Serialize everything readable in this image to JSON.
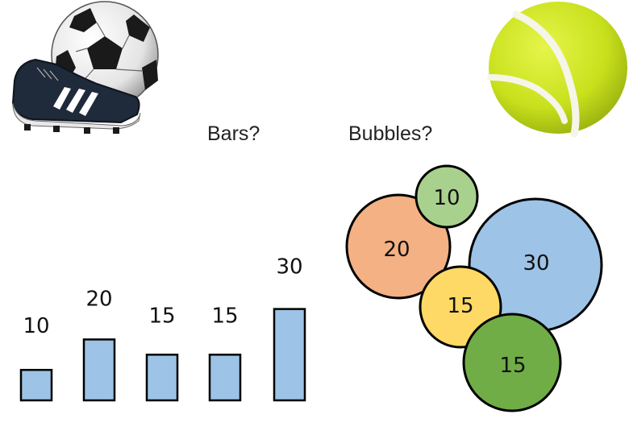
{
  "slide": {
    "question_bars": "Bars?",
    "question_bubbles": "Bubbles?"
  },
  "images": {
    "left": "soccer-ball-and-cleat",
    "right": "tennis-ball"
  },
  "colors": {
    "bar_fill": "#9dc3e6",
    "stroke": "#000000",
    "bubble_orange": "#f4b183",
    "bubble_green_light": "#a9d18e",
    "bubble_blue": "#9dc3e6",
    "bubble_yellow": "#ffd966",
    "bubble_green": "#70ad47"
  },
  "chart_data": [
    {
      "type": "bar",
      "values": [
        10,
        20,
        15,
        15,
        30
      ],
      "data_labels": [
        "10",
        "20",
        "15",
        "15",
        "30"
      ]
    },
    {
      "type": "bubble",
      "bubbles": [
        {
          "value": 20,
          "label": "20",
          "color": "#f4b183"
        },
        {
          "value": 10,
          "label": "10",
          "color": "#a9d18e"
        },
        {
          "value": 30,
          "label": "30",
          "color": "#9dc3e6"
        },
        {
          "value": 15,
          "label": "15",
          "color": "#ffd966"
        },
        {
          "value": 15,
          "label": "15",
          "color": "#70ad47"
        }
      ]
    }
  ]
}
